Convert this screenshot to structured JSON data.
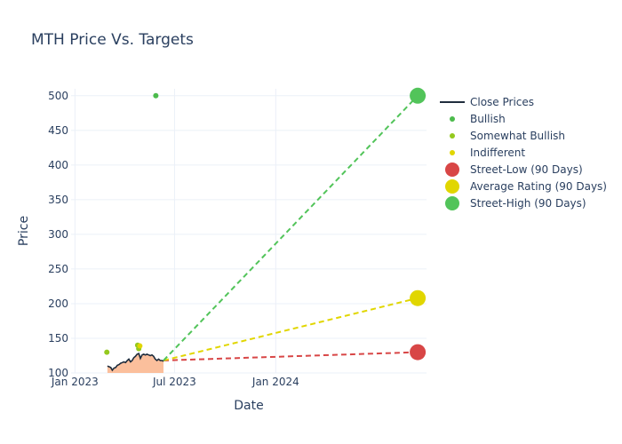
{
  "chart_data": {
    "type": "line",
    "title": "MTH Price Vs. Targets",
    "xlabel": "Date",
    "ylabel": "Price",
    "xlim": [
      "2022-12-25",
      "2024-10-01"
    ],
    "ylim": [
      100,
      510
    ],
    "x_ticks": [
      {
        "date": "2023-01-01",
        "label": "Jan 2023"
      },
      {
        "date": "2023-07-01",
        "label": "Jul 2023"
      },
      {
        "date": "2024-01-01",
        "label": "Jan 2024"
      }
    ],
    "y_ticks": [
      100,
      150,
      200,
      250,
      300,
      350,
      400,
      450,
      500
    ],
    "grid": true,
    "legend_position": "right",
    "series": [
      {
        "name": "Close Prices",
        "kind": "line-area",
        "color": "#1f2d3d",
        "fill_color": "#fbbf9c",
        "points": [
          [
            "2023-03-01",
            110
          ],
          [
            "2023-03-04",
            109
          ],
          [
            "2023-03-07",
            108
          ],
          [
            "2023-03-10",
            104
          ],
          [
            "2023-03-13",
            107
          ],
          [
            "2023-03-16",
            108
          ],
          [
            "2023-03-19",
            111
          ],
          [
            "2023-03-22",
            112
          ],
          [
            "2023-03-25",
            114
          ],
          [
            "2023-03-28",
            115
          ],
          [
            "2023-03-31",
            116
          ],
          [
            "2023-04-03",
            115
          ],
          [
            "2023-04-06",
            118
          ],
          [
            "2023-04-09",
            120
          ],
          [
            "2023-04-12",
            116
          ],
          [
            "2023-04-15",
            118
          ],
          [
            "2023-04-18",
            122
          ],
          [
            "2023-04-21",
            124
          ],
          [
            "2023-04-24",
            127
          ],
          [
            "2023-04-27",
            128
          ],
          [
            "2023-04-30",
            121
          ],
          [
            "2023-05-03",
            126
          ],
          [
            "2023-05-06",
            127
          ],
          [
            "2023-05-09",
            126
          ],
          [
            "2023-05-12",
            127
          ],
          [
            "2023-05-15",
            126
          ],
          [
            "2023-05-18",
            125
          ],
          [
            "2023-05-21",
            126
          ],
          [
            "2023-05-24",
            124
          ],
          [
            "2023-05-27",
            120
          ],
          [
            "2023-05-30",
            118
          ],
          [
            "2023-06-02",
            120
          ],
          [
            "2023-06-05",
            118
          ],
          [
            "2023-06-08",
            118
          ],
          [
            "2023-06-11",
            117
          ]
        ]
      },
      {
        "name": "Bullish",
        "kind": "scatter",
        "color": "#4cbb4c",
        "points": [
          [
            "2023-05-28",
            500
          ]
        ]
      },
      {
        "name": "Somewhat Bullish",
        "kind": "scatter",
        "color": "#94c91e",
        "points": [
          [
            "2023-02-28",
            130
          ],
          [
            "2023-04-25",
            140
          ],
          [
            "2023-04-27",
            135
          ]
        ]
      },
      {
        "name": "Indifferent",
        "kind": "scatter",
        "color": "#e1d600",
        "points": [
          [
            "2023-04-29",
            139
          ]
        ]
      },
      {
        "name": "Street-Low (90 Days)",
        "kind": "target",
        "color": "#d84646",
        "from": [
          "2023-06-11",
          118
        ],
        "to": [
          "2024-09-15",
          130
        ]
      },
      {
        "name": "Average Rating (90 Days)",
        "kind": "target",
        "color": "#e1d600",
        "from": [
          "2023-06-11",
          118
        ],
        "to": [
          "2024-09-15",
          208
        ]
      },
      {
        "name": "Street-High (90 Days)",
        "kind": "target",
        "color": "#52c45a",
        "from": [
          "2023-06-11",
          118
        ],
        "to": [
          "2024-09-15",
          500
        ]
      }
    ]
  }
}
